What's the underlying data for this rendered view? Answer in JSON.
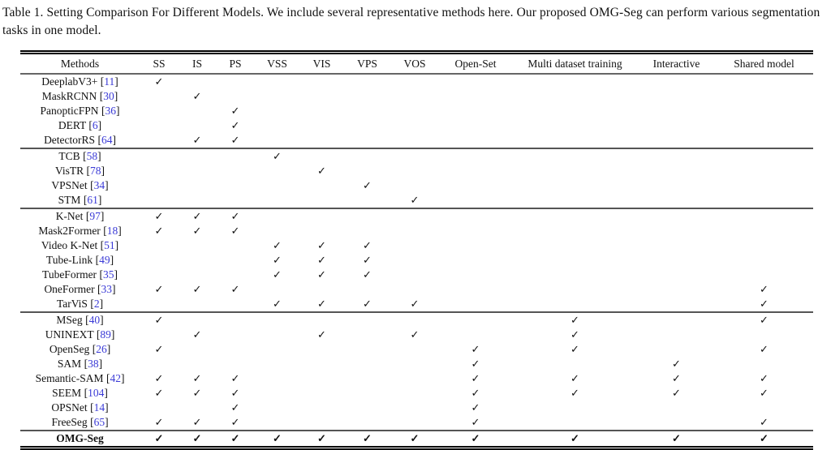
{
  "caption": "Table 1. Setting Comparison For Different Models. We include several representative methods here. Our proposed OMG-Seg can perform various segmentation tasks in one model.",
  "check_glyph": "✓",
  "colors": {
    "citation_blue": "#3a3ad6",
    "text": "#111111",
    "rule": "#555555"
  },
  "chart_data": {
    "type": "table",
    "title": "Table 1. Setting Comparison For Different Models.",
    "columns": [
      "Methods",
      "SS",
      "IS",
      "PS",
      "VSS",
      "VIS",
      "VPS",
      "VOS",
      "Open-Set",
      "Multi dataset training",
      "Interactive",
      "Shared model"
    ],
    "check_columns": [
      "SS",
      "IS",
      "PS",
      "VSS",
      "VIS",
      "VPS",
      "VOS",
      "Open-Set",
      "Multi dataset training",
      "Interactive",
      "Shared model"
    ],
    "groups": [
      {
        "rows": [
          {
            "method": "DeeplabV3+",
            "cite": "11",
            "checks": [
              "SS"
            ]
          },
          {
            "method": "MaskRCNN",
            "cite": "30",
            "checks": [
              "IS"
            ]
          },
          {
            "method": "PanopticFPN",
            "cite": "36",
            "checks": [
              "PS"
            ]
          },
          {
            "method": "DERT",
            "cite": "6",
            "checks": [
              "PS"
            ]
          },
          {
            "method": "DetectorRS",
            "cite": "64",
            "checks": [
              "IS",
              "PS"
            ]
          }
        ]
      },
      {
        "rows": [
          {
            "method": "TCB",
            "cite": "58",
            "checks": [
              "VSS"
            ]
          },
          {
            "method": "VisTR",
            "cite": "78",
            "checks": [
              "VIS"
            ]
          },
          {
            "method": "VPSNet",
            "cite": "34",
            "checks": [
              "VPS"
            ]
          },
          {
            "method": "STM",
            "cite": "61",
            "checks": [
              "VOS"
            ]
          }
        ]
      },
      {
        "rows": [
          {
            "method": "K-Net",
            "cite": "97",
            "checks": [
              "SS",
              "IS",
              "PS"
            ]
          },
          {
            "method": "Mask2Former",
            "cite": "18",
            "checks": [
              "SS",
              "IS",
              "PS"
            ]
          },
          {
            "method": "Video K-Net",
            "cite": "51",
            "checks": [
              "VSS",
              "VIS",
              "VPS"
            ]
          },
          {
            "method": "Tube-Link",
            "cite": "49",
            "checks": [
              "VSS",
              "VIS",
              "VPS"
            ]
          },
          {
            "method": "TubeFormer",
            "cite": "35",
            "checks": [
              "VSS",
              "VIS",
              "VPS"
            ]
          },
          {
            "method": "OneFormer",
            "cite": "33",
            "checks": [
              "SS",
              "IS",
              "PS",
              "Shared model"
            ]
          },
          {
            "method": "TarViS",
            "cite": "2",
            "checks": [
              "VSS",
              "VIS",
              "VPS",
              "VOS",
              "Shared model"
            ]
          }
        ]
      },
      {
        "rows": [
          {
            "method": "MSeg",
            "cite": "40",
            "checks": [
              "SS",
              "Multi dataset training",
              "Shared model"
            ]
          },
          {
            "method": "UNINEXT",
            "cite": "89",
            "checks": [
              "IS",
              "VIS",
              "VOS",
              "Multi dataset training"
            ]
          },
          {
            "method": "OpenSeg",
            "cite": "26",
            "checks": [
              "SS",
              "Open-Set",
              "Multi dataset training",
              "Shared model"
            ]
          },
          {
            "method": "SAM",
            "cite": "38",
            "checks": [
              "Open-Set",
              "Interactive"
            ]
          },
          {
            "method": "Semantic-SAM",
            "cite": "42",
            "checks": [
              "SS",
              "IS",
              "PS",
              "Open-Set",
              "Multi dataset training",
              "Interactive",
              "Shared model"
            ]
          },
          {
            "method": "SEEM",
            "cite": "104",
            "checks": [
              "SS",
              "IS",
              "PS",
              "Open-Set",
              "Multi dataset training",
              "Interactive",
              "Shared model"
            ]
          },
          {
            "method": "OPSNet",
            "cite": "14",
            "checks": [
              "PS",
              "Open-Set"
            ]
          },
          {
            "method": "FreeSeg",
            "cite": "65",
            "checks": [
              "SS",
              "IS",
              "PS",
              "Open-Set",
              "Shared model"
            ]
          }
        ]
      },
      {
        "rows": [
          {
            "method": "OMG-Seg",
            "cite": null,
            "bold": true,
            "checks": [
              "SS",
              "IS",
              "PS",
              "VSS",
              "VIS",
              "VPS",
              "VOS",
              "Open-Set",
              "Multi dataset training",
              "Interactive",
              "Shared model"
            ]
          }
        ]
      }
    ]
  }
}
